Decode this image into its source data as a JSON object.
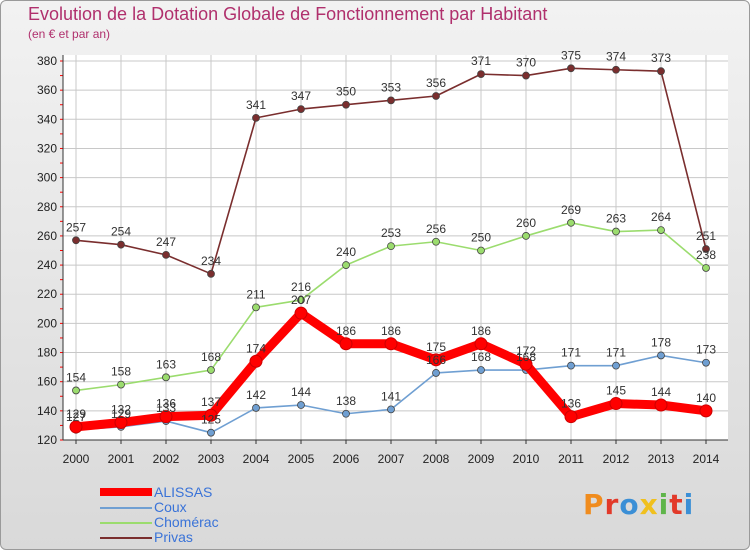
{
  "header": {
    "title": "Evolution de la Dotation Globale de Fonctionnement par Habitant",
    "subtitle": "(en € et par an)"
  },
  "brand": {
    "text": "Proxiti",
    "colors": [
      "#f08c1e",
      "#e23a2a",
      "#3b8fd6",
      "#f0c01e",
      "#5fb54a",
      "#e23a2a",
      "#3b8fd6"
    ]
  },
  "chart_data": {
    "type": "line",
    "categories": [
      "2000",
      "2001",
      "2002",
      "2003",
      "2004",
      "2005",
      "2006",
      "2007",
      "2008",
      "2009",
      "2010",
      "2011",
      "2012",
      "2013",
      "2014"
    ],
    "ylim": [
      120,
      380
    ],
    "yticks": [
      120,
      140,
      160,
      180,
      200,
      220,
      240,
      260,
      280,
      300,
      320,
      340,
      360,
      380
    ],
    "grid": true,
    "legend_position": "bottom-left",
    "series": [
      {
        "name": "ALISSAS",
        "color": "#ff0000",
        "values": [
          129,
          132,
          136,
          137,
          174,
          207,
          186,
          186,
          175,
          186,
          172,
          136,
          145,
          144,
          140
        ]
      },
      {
        "name": "Coux",
        "color": "#6f9fd2",
        "values": [
          127,
          129,
          133,
          125,
          142,
          144,
          138,
          141,
          166,
          168,
          168,
          171,
          171,
          178,
          173
        ]
      },
      {
        "name": "Chomérac",
        "color": "#9bdc6e",
        "values": [
          154,
          158,
          163,
          168,
          211,
          216,
          240,
          253,
          256,
          250,
          260,
          269,
          263,
          264,
          238
        ]
      },
      {
        "name": "Privas",
        "color": "#7a2e2e",
        "values": [
          257,
          254,
          247,
          234,
          341,
          347,
          350,
          353,
          356,
          371,
          370,
          375,
          374,
          373,
          251
        ]
      }
    ]
  }
}
